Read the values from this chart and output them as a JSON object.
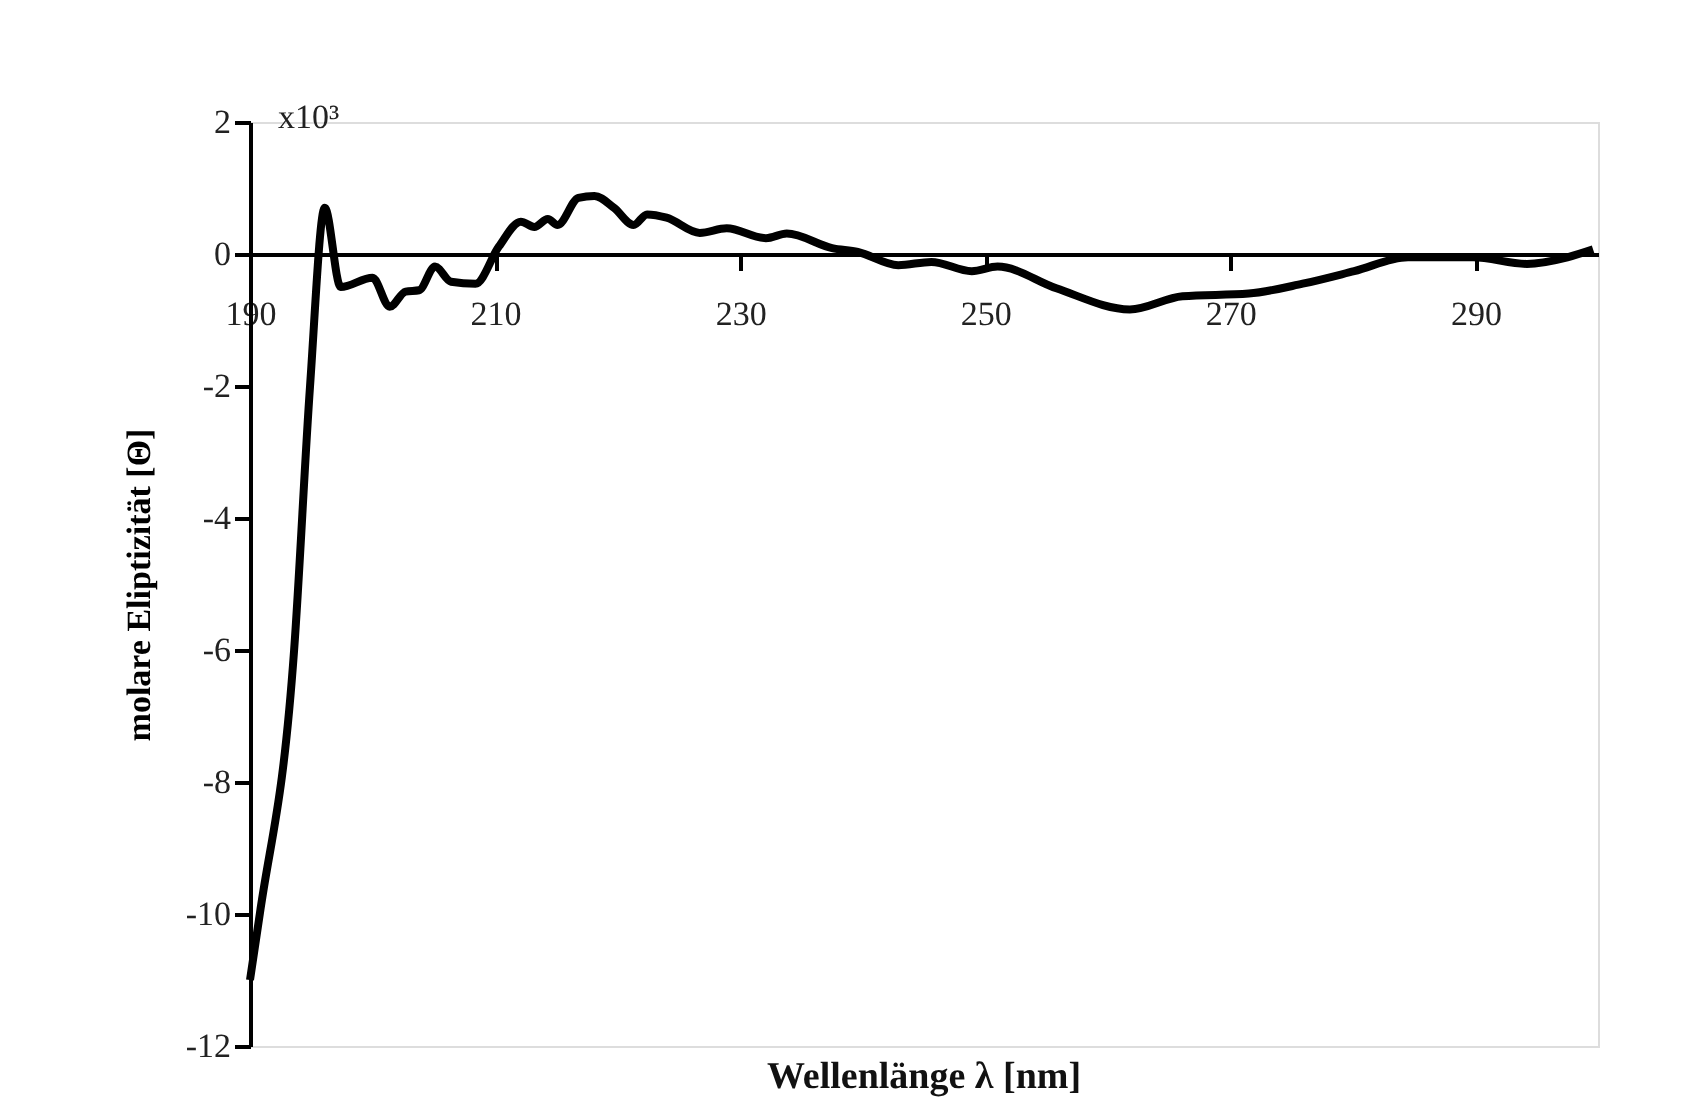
{
  "chart_data": {
    "type": "line",
    "xlabel": "Wellenlänge λ [nm]",
    "ylabel": "molare Eliptizität [Θ]",
    "annotations": [
      "x10³"
    ],
    "x": [
      190.0,
      190.8,
      193.6,
      194.9,
      196.1,
      197.4,
      200.0,
      201.4,
      202.7,
      203.8,
      205.1,
      206.4,
      208.4,
      210.3,
      212.1,
      213.2,
      214.3,
      215.1,
      216.8,
      218.1,
      219.7,
      221.3,
      222.4,
      224.0,
      226.7,
      228.9,
      232.1,
      233.8,
      237.5,
      239.6,
      242.9,
      245.6,
      248.9,
      251.0,
      255.8,
      261.8,
      266.1,
      271.5,
      275.9,
      280.1,
      284.5,
      289.8,
      294.2,
      297.5,
      299.6
    ],
    "series": [
      {
        "color": "#000000",
        "values": [
          -11.0,
          -10.0,
          -6.0,
          -2.0,
          0.7,
          -0.5,
          -0.36,
          -0.8,
          -0.57,
          -0.55,
          -0.19,
          -0.42,
          -0.45,
          0.11,
          0.49,
          0.41,
          0.53,
          0.44,
          0.85,
          0.88,
          0.7,
          0.44,
          0.6,
          0.55,
          0.32,
          0.39,
          0.24,
          0.31,
          0.09,
          0.03,
          -0.17,
          -0.12,
          -0.26,
          -0.19,
          -0.52,
          -0.84,
          -0.64,
          -0.6,
          -0.45,
          -0.26,
          -0.05,
          -0.05,
          -0.15,
          -0.05,
          0.07
        ]
      }
    ],
    "xlim": [
      190,
      300
    ],
    "xticks": [
      190,
      210,
      230,
      250,
      270,
      290
    ],
    "ylim": [
      -12,
      2
    ],
    "yticks": [
      -12,
      -10,
      -8,
      -6,
      -4,
      -2,
      0,
      2
    ],
    "grid": false,
    "marker": "none",
    "line_style": "solid"
  }
}
